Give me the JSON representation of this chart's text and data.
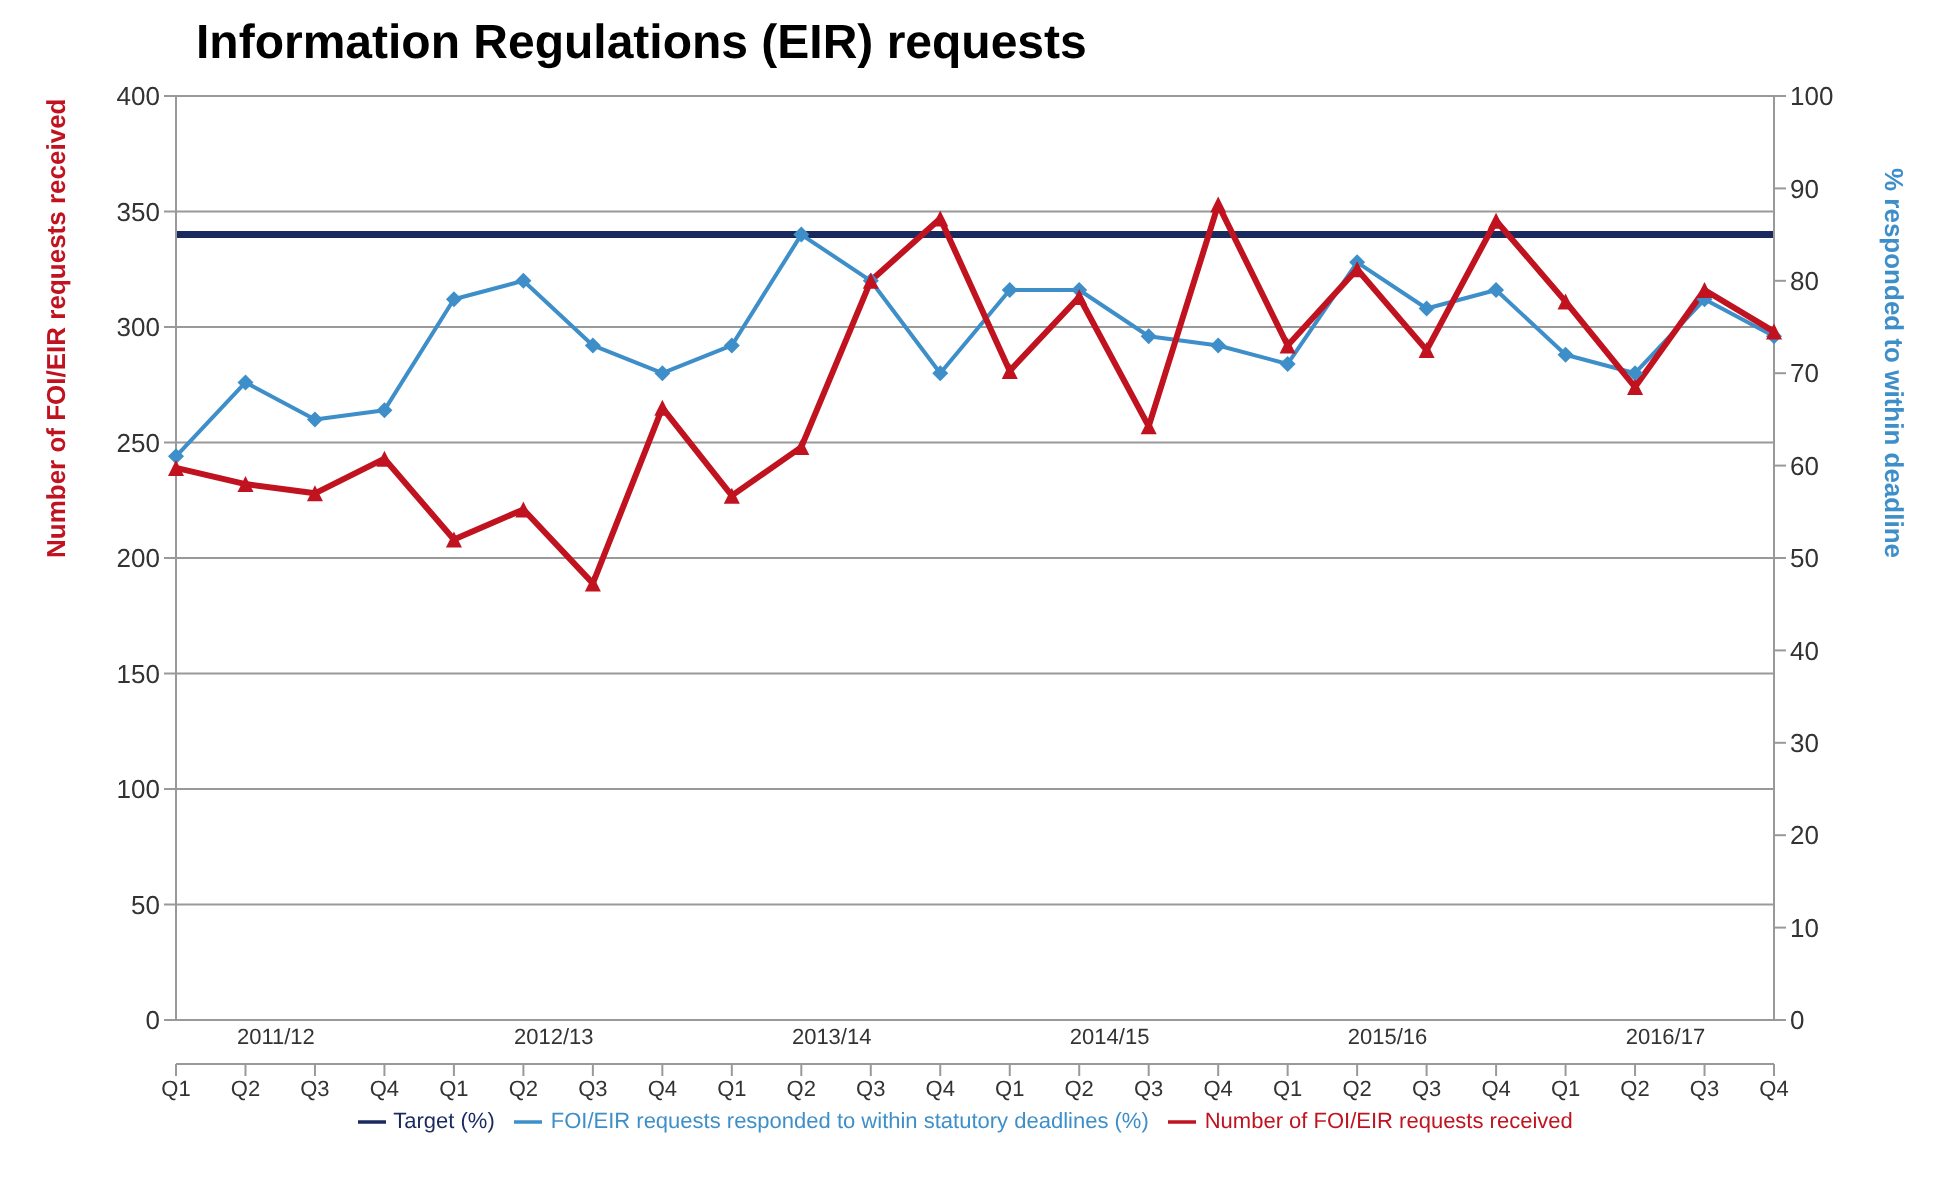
{
  "chart_data": {
    "type": "line",
    "title": "Information Regulations (EIR) requests",
    "ylabel": "Number of FOI/EIR requests received",
    "y2label": "% responded to within deadline",
    "categories": [
      "Q1",
      "Q2",
      "Q3",
      "Q4",
      "Q1",
      "Q2",
      "Q3",
      "Q4",
      "Q1",
      "Q2",
      "Q3",
      "Q4",
      "Q1",
      "Q2",
      "Q3",
      "Q4",
      "Q1",
      "Q2",
      "Q3",
      "Q4",
      "Q1",
      "Q2",
      "Q3",
      "Q4"
    ],
    "annotations": [
      "2011/12",
      "2012/13",
      "2013/14",
      "2014/15",
      "2015/16",
      "2016/17"
    ],
    "series": [
      {
        "name": "Number of FOI/EIR requests received",
        "color": "#c0131f",
        "marker": "triangle",
        "values": [
          239,
          232,
          228,
          243,
          208,
          221,
          189,
          265,
          227,
          248,
          320,
          347,
          281,
          313,
          257,
          353,
          292,
          325,
          290,
          346,
          311,
          274,
          316,
          298
        ]
      },
      {
        "name": "FOI/EIR requests responded to within statutory deadlines (%)",
        "color": "#3e8fc9",
        "marker": "diamond",
        "axis": "y2",
        "values": [
          61,
          69,
          65,
          66,
          78,
          80,
          73,
          70,
          73,
          85,
          80,
          70,
          79,
          79,
          74,
          73,
          71,
          82,
          77,
          79,
          72,
          70,
          78,
          74
        ]
      },
      {
        "name": "Target (%)",
        "color": "#1a2a5e",
        "marker": "none",
        "axis": "y2",
        "values": [
          85,
          85,
          85,
          85,
          85,
          85,
          85,
          85,
          85,
          85,
          85,
          85,
          85,
          85,
          85,
          85,
          85,
          85,
          85,
          85,
          85,
          85,
          85,
          85
        ]
      }
    ],
    "ylim": [
      0,
      400
    ],
    "yticks": [
      0,
      50,
      100,
      150,
      200,
      250,
      300,
      350,
      400
    ],
    "y2lim": [
      0,
      100
    ],
    "y2ticks": [
      0,
      10,
      20,
      30,
      40,
      50,
      60,
      70,
      80,
      90,
      100
    ],
    "grid": "y",
    "legend": "bottom"
  }
}
